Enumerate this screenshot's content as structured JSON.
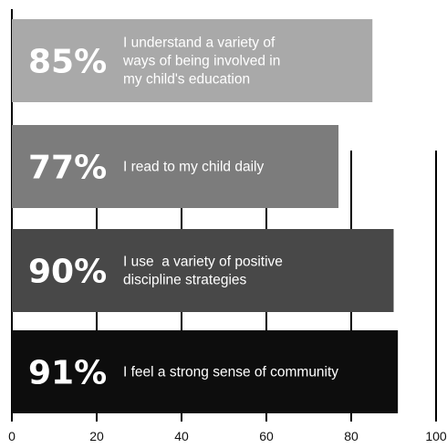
{
  "chart_data": {
    "type": "bar",
    "orientation": "horizontal",
    "xlim": [
      0,
      100
    ],
    "x_ticks": [
      "0",
      "20",
      "40",
      "60",
      "80",
      "100"
    ],
    "grid": true,
    "bars": [
      {
        "value": 85,
        "value_label": "85%",
        "label_lines": [
          "I understand a variety of",
          "ways of being involved in",
          "my child's education"
        ],
        "color": "#a9a9a9"
      },
      {
        "value": 77,
        "value_label": "77%",
        "label_lines": [
          "I read to my child daily"
        ],
        "color": "#7c7c7c"
      },
      {
        "value": 90,
        "value_label": "90%",
        "label_lines": [
          "I use  a variety of positive",
          "discipline strategies"
        ],
        "color": "#484848"
      },
      {
        "value": 91,
        "value_label": "91%",
        "label_lines": [
          "I feel a strong sense of community"
        ],
        "color": "#0d0d0d"
      }
    ]
  }
}
